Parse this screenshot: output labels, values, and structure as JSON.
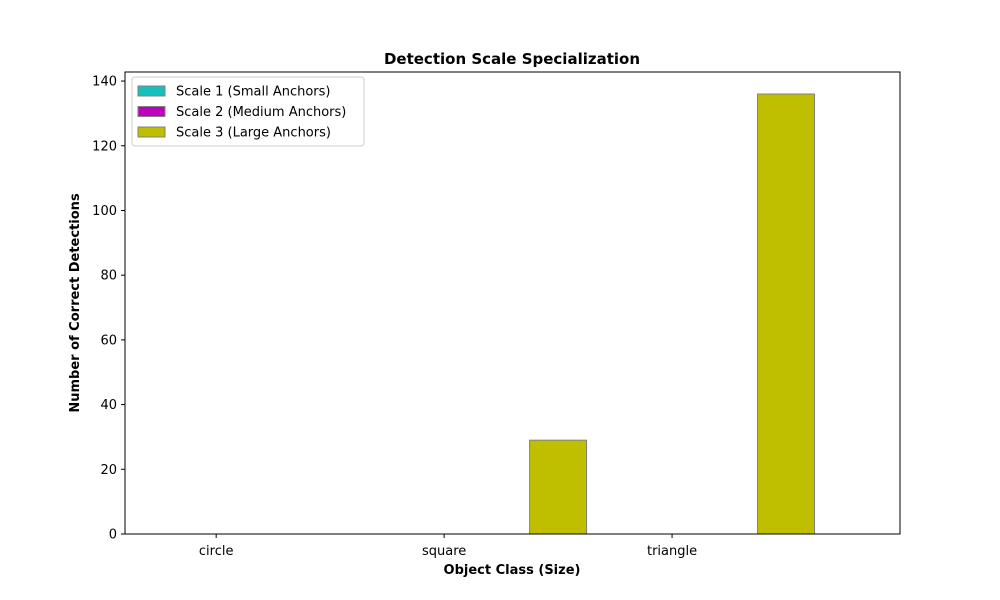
{
  "chart_data": {
    "type": "bar",
    "title": "Detection Scale Specialization",
    "xlabel": "Object Class (Size)",
    "ylabel": "Number of Correct Detections",
    "categories": [
      "circle",
      "square",
      "triangle"
    ],
    "series": [
      {
        "name": "Scale 1 (Small Anchors)",
        "color": "#17bfbf",
        "values": [
          0,
          0,
          0
        ]
      },
      {
        "name": "Scale 2 (Medium Anchors)",
        "color": "#bf00bf",
        "values": [
          0,
          0,
          0
        ]
      },
      {
        "name": "Scale 3 (Large Anchors)",
        "color": "#bfbf00",
        "values": [
          0,
          29,
          136
        ]
      }
    ],
    "ylim": [
      0,
      142.8
    ],
    "yticks": [
      0,
      20,
      40,
      60,
      80,
      100,
      120,
      140
    ],
    "grid": false,
    "legend": "top-left"
  }
}
